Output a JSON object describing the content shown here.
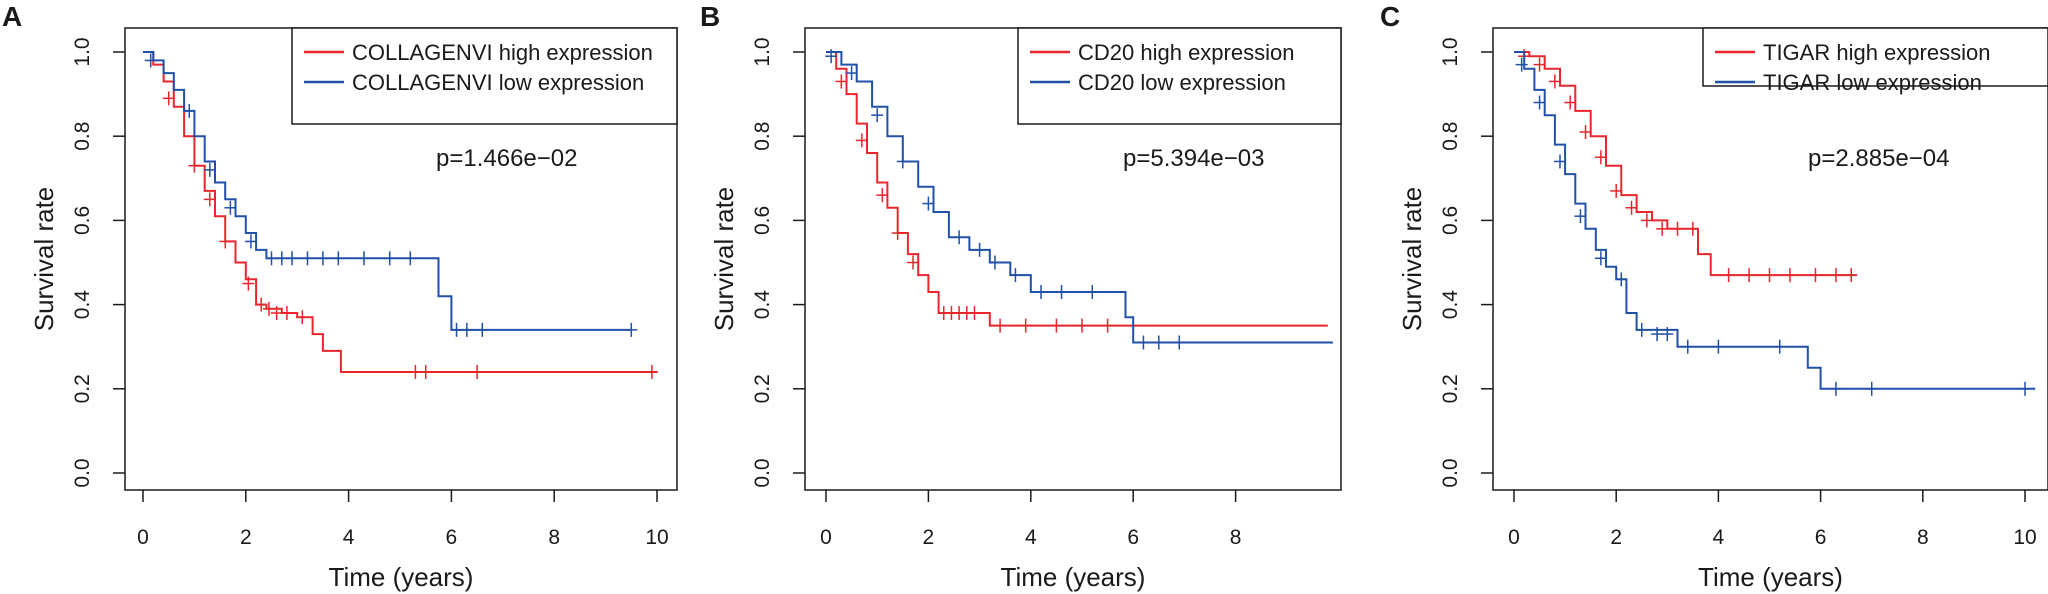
{
  "colors": {
    "high": "#e8262d",
    "low": "#2150a8",
    "axis": "#1a1a1a"
  },
  "chart_data": [
    {
      "type": "line",
      "panel": "A",
      "xlabel": "Time (years)",
      "ylabel": "Survival rate",
      "xlim": [
        0,
        10
      ],
      "ylim": [
        0,
        1
      ],
      "xticks": [
        "0",
        "2",
        "4",
        "6",
        "8",
        "10"
      ],
      "yticks": [
        "0.0",
        "0.2",
        "0.4",
        "0.6",
        "0.8",
        "1.0"
      ],
      "pvalue": "p=1.466e−02",
      "legend_position": "top-right",
      "series": [
        {
          "name": "COLLAGENVI high expression",
          "color_key": "high",
          "x": [
            0,
            0.2,
            0.4,
            0.6,
            0.8,
            1.0,
            1.2,
            1.4,
            1.6,
            1.8,
            2.0,
            2.2,
            2.4,
            2.7,
            3.0,
            3.3,
            3.5,
            3.85,
            10.0
          ],
          "y": [
            1.0,
            0.97,
            0.93,
            0.87,
            0.8,
            0.73,
            0.67,
            0.61,
            0.55,
            0.5,
            0.46,
            0.4,
            0.39,
            0.38,
            0.37,
            0.33,
            0.29,
            0.24,
            0.24
          ],
          "censor_x": [
            0.5,
            1.0,
            1.3,
            1.6,
            2.05,
            2.3,
            2.45,
            2.6,
            2.8,
            3.1,
            5.3,
            5.5,
            6.5,
            9.9
          ],
          "censor_y": [
            0.89,
            0.73,
            0.65,
            0.55,
            0.45,
            0.4,
            0.39,
            0.38,
            0.38,
            0.37,
            0.24,
            0.24,
            0.24,
            0.24
          ]
        },
        {
          "name": "COLLAGENVI low expression",
          "color_key": "low",
          "x": [
            0,
            0.2,
            0.4,
            0.6,
            0.8,
            1.0,
            1.2,
            1.4,
            1.6,
            1.8,
            2.0,
            2.2,
            2.4,
            5.75,
            6.0,
            9.5
          ],
          "y": [
            1.0,
            0.98,
            0.95,
            0.91,
            0.86,
            0.8,
            0.74,
            0.69,
            0.65,
            0.61,
            0.57,
            0.53,
            0.51,
            0.42,
            0.34,
            0.34
          ],
          "censor_x": [
            0.15,
            0.9,
            1.3,
            1.7,
            2.1,
            2.5,
            2.7,
            2.9,
            3.2,
            3.5,
            3.8,
            4.3,
            4.8,
            5.2,
            6.1,
            6.3,
            6.6,
            9.5
          ],
          "censor_y": [
            0.98,
            0.86,
            0.72,
            0.63,
            0.55,
            0.51,
            0.51,
            0.51,
            0.51,
            0.51,
            0.51,
            0.51,
            0.51,
            0.51,
            0.34,
            0.34,
            0.34,
            0.34
          ]
        }
      ]
    },
    {
      "type": "line",
      "panel": "B",
      "xlabel": "Time (years)",
      "ylabel": "Survival rate",
      "xlim": [
        0,
        10
      ],
      "ylim": [
        0,
        1
      ],
      "xticks": [
        "0",
        "2",
        "4",
        "6",
        "8"
      ],
      "yticks": [
        "0.0",
        "0.2",
        "0.4",
        "0.6",
        "0.8",
        "1.0"
      ],
      "pvalue": "p=5.394e−03",
      "legend_position": "top-right",
      "series": [
        {
          "name": "CD20 high expression",
          "color_key": "high",
          "x": [
            0,
            0.2,
            0.4,
            0.6,
            0.8,
            1.0,
            1.2,
            1.4,
            1.6,
            1.8,
            2.0,
            2.2,
            3.2,
            9.8
          ],
          "y": [
            1.0,
            0.96,
            0.9,
            0.83,
            0.76,
            0.69,
            0.63,
            0.57,
            0.52,
            0.47,
            0.43,
            0.38,
            0.35,
            0.35
          ],
          "censor_x": [
            0.3,
            0.7,
            1.1,
            1.4,
            1.7,
            2.3,
            2.45,
            2.6,
            2.75,
            2.9,
            3.4,
            3.9,
            4.5,
            5.0,
            5.5
          ],
          "censor_y": [
            0.93,
            0.79,
            0.66,
            0.57,
            0.5,
            0.38,
            0.38,
            0.38,
            0.38,
            0.38,
            0.35,
            0.35,
            0.35,
            0.35,
            0.35
          ]
        },
        {
          "name": "CD20 low expression",
          "color_key": "low",
          "x": [
            0,
            0.3,
            0.6,
            0.9,
            1.2,
            1.5,
            1.8,
            2.1,
            2.4,
            2.8,
            3.2,
            3.6,
            4.0,
            5.0,
            5.85,
            6.0,
            9.9
          ],
          "y": [
            1.0,
            0.97,
            0.93,
            0.87,
            0.8,
            0.74,
            0.68,
            0.62,
            0.56,
            0.53,
            0.5,
            0.47,
            0.43,
            0.43,
            0.37,
            0.31,
            0.31
          ],
          "censor_x": [
            0.1,
            0.5,
            1.0,
            1.5,
            2.0,
            2.6,
            3.0,
            3.3,
            3.7,
            4.2,
            4.6,
            5.2,
            6.2,
            6.5,
            6.9
          ],
          "censor_y": [
            0.99,
            0.95,
            0.85,
            0.74,
            0.64,
            0.56,
            0.53,
            0.5,
            0.47,
            0.43,
            0.43,
            0.43,
            0.31,
            0.31,
            0.31
          ]
        }
      ]
    },
    {
      "type": "line",
      "panel": "C",
      "xlabel": "Time (years)",
      "ylabel": "Survival rate",
      "xlim": [
        0,
        10
      ],
      "ylim": [
        0,
        1
      ],
      "xticks": [
        "0",
        "2",
        "4",
        "6",
        "8",
        "10"
      ],
      "yticks": [
        "0.0",
        "0.2",
        "0.4",
        "0.6",
        "0.8",
        "1.0"
      ],
      "pvalue": "p=2.885e−04",
      "legend_position": "top-right",
      "series": [
        {
          "name": "TIGAR high expression",
          "color_key": "high",
          "x": [
            0,
            0.3,
            0.6,
            0.9,
            1.2,
            1.5,
            1.8,
            2.1,
            2.4,
            2.7,
            3.0,
            3.6,
            3.85,
            6.7
          ],
          "y": [
            1.0,
            0.99,
            0.96,
            0.92,
            0.86,
            0.8,
            0.73,
            0.66,
            0.62,
            0.6,
            0.58,
            0.52,
            0.47,
            0.47
          ],
          "censor_x": [
            0.2,
            0.5,
            0.8,
            1.1,
            1.4,
            1.7,
            2.0,
            2.3,
            2.6,
            2.9,
            3.2,
            3.5,
            4.2,
            4.6,
            5.0,
            5.4,
            5.9,
            6.3,
            6.6
          ],
          "censor_y": [
            0.99,
            0.97,
            0.93,
            0.88,
            0.81,
            0.75,
            0.67,
            0.63,
            0.6,
            0.58,
            0.58,
            0.58,
            0.47,
            0.47,
            0.47,
            0.47,
            0.47,
            0.47,
            0.47
          ]
        },
        {
          "name": "TIGAR low expression",
          "color_key": "low",
          "x": [
            0,
            0.2,
            0.4,
            0.6,
            0.8,
            1.0,
            1.2,
            1.4,
            1.6,
            1.8,
            2.0,
            2.2,
            2.4,
            3.2,
            5.75,
            6.0,
            10.2
          ],
          "y": [
            1.0,
            0.96,
            0.91,
            0.85,
            0.78,
            0.71,
            0.64,
            0.58,
            0.53,
            0.49,
            0.46,
            0.38,
            0.34,
            0.3,
            0.25,
            0.2,
            0.2
          ],
          "censor_x": [
            0.15,
            0.5,
            0.9,
            1.3,
            1.7,
            2.1,
            2.5,
            2.8,
            3.0,
            3.4,
            4.0,
            5.2,
            6.3,
            7.0,
            10.0
          ],
          "censor_y": [
            0.97,
            0.88,
            0.74,
            0.61,
            0.51,
            0.46,
            0.34,
            0.33,
            0.33,
            0.3,
            0.3,
            0.3,
            0.2,
            0.2,
            0.2
          ]
        }
      ]
    }
  ]
}
